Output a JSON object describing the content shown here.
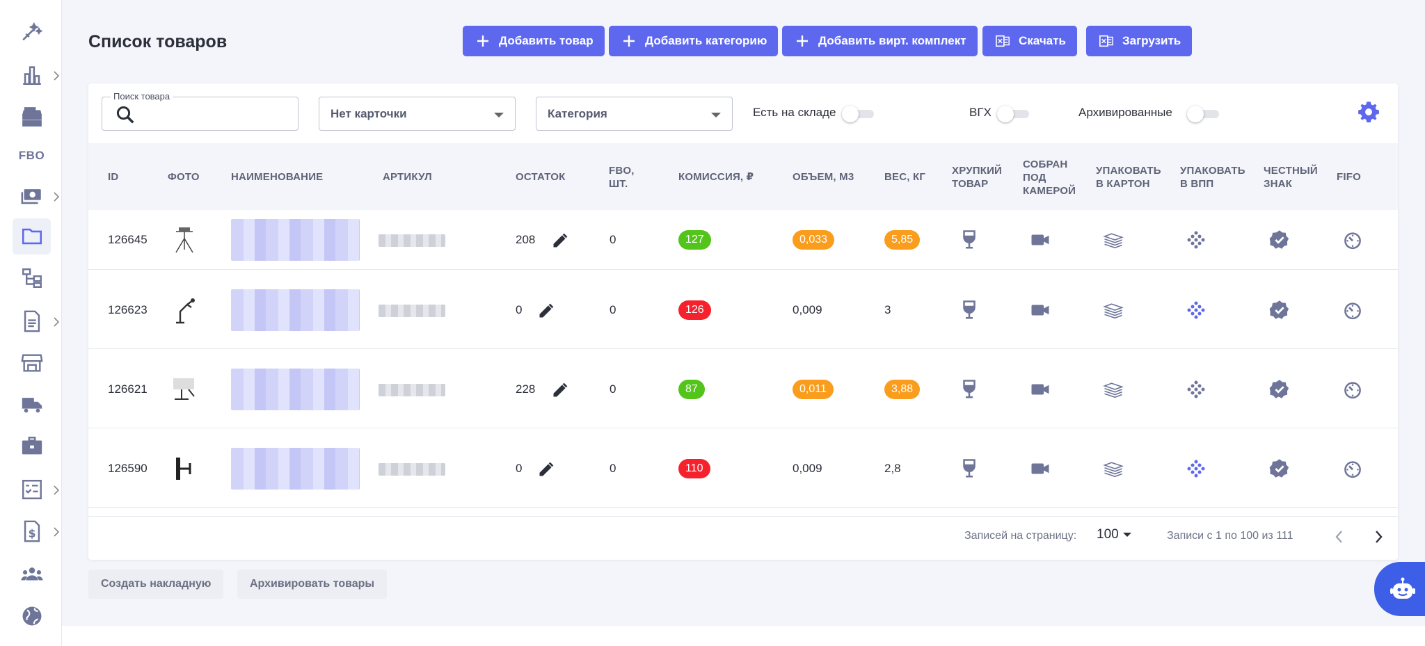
{
  "page": {
    "title": "Список товаров"
  },
  "sidebar": {
    "items": [
      {
        "icon": "sparkle-icon"
      },
      {
        "icon": "bar-chart-icon",
        "has_submenu": true
      },
      {
        "icon": "cash-register-icon"
      },
      {
        "text": "FBO"
      },
      {
        "icon": "money-icon",
        "has_submenu": true
      },
      {
        "icon": "folder-icon",
        "active": true
      },
      {
        "icon": "hierarchy-icon"
      },
      {
        "icon": "document-icon",
        "has_submenu": true
      },
      {
        "icon": "store-icon"
      },
      {
        "icon": "truck-icon"
      },
      {
        "icon": "briefcase-icon"
      },
      {
        "icon": "checklist-icon",
        "has_submenu": true
      },
      {
        "icon": "invoice-icon",
        "has_submenu": true
      },
      {
        "icon": "team-icon"
      },
      {
        "icon": "globe-icon"
      }
    ]
  },
  "toolbar": {
    "add_product": "Добавить товар",
    "add_category": "Добавить категорию",
    "add_virtual_kit": "Добавить вирт. комплект",
    "download": "Скачать",
    "upload": "Загрузить"
  },
  "filters": {
    "search_label": "Поиск товара",
    "search_value": "",
    "card_select": "Нет карточки",
    "category_select": "Категория",
    "in_stock_label": "Есть на складе",
    "vgh_label": "ВГХ",
    "archived_label": "Архивированные",
    "in_stock_on": false,
    "vgh_on": false,
    "archived_on": false
  },
  "table": {
    "columns": {
      "id": "ID",
      "photo": "ФОТО",
      "name": "НАИМЕНОВАНИЕ",
      "sku": "АРТИКУЛ",
      "stock": "ОСТАТОК",
      "fbo_1": "FBO,",
      "fbo_2": "ШТ.",
      "commission": "КОМИССИЯ, ₽",
      "volume": "ОБЪЕМ, М3",
      "weight": "ВЕС, КГ",
      "fragile_1": "ХРУПКИЙ",
      "fragile_2": "ТОВАР",
      "camera_1": "СОБРАН",
      "camera_2": "ПОД",
      "camera_3": "КАМЕРОЙ",
      "carton_1": "УПАКОВАТЬ",
      "carton_2": "В КАРТОН",
      "bubble_1": "УПАКОВАТЬ",
      "bubble_2": "В ВПП",
      "honest_1": "ЧЕСТНЫЙ",
      "honest_2": "ЗНАК",
      "fifo": "FIFO"
    },
    "rows": [
      {
        "id": "126645",
        "stock": "208",
        "fbo": "0",
        "commission": "127",
        "commission_color": "#52c41a",
        "volume": "0,033",
        "volume_badge": true,
        "weight": "5,85",
        "weight_badge": true,
        "bubble_active": false
      },
      {
        "id": "126623",
        "stock": "0",
        "fbo": "0",
        "commission": "126",
        "commission_color": "#f5222d",
        "volume": "0,009",
        "volume_badge": false,
        "weight": "3",
        "weight_badge": false,
        "bubble_active": true
      },
      {
        "id": "126621",
        "stock": "228",
        "fbo": "0",
        "commission": "87",
        "commission_color": "#52c41a",
        "volume": "0,011",
        "volume_badge": true,
        "weight": "3,88",
        "weight_badge": true,
        "bubble_active": false
      },
      {
        "id": "126590",
        "stock": "0",
        "fbo": "0",
        "commission": "110",
        "commission_color": "#f5222d",
        "volume": "0,009",
        "volume_badge": false,
        "weight": "2,8",
        "weight_badge": false,
        "bubble_active": true
      }
    ]
  },
  "pagination": {
    "per_page_label": "Записей на страницу:",
    "per_page_value": "100",
    "range_text": "Записи с 1 по 100 из 111"
  },
  "bottom": {
    "create_invoice": "Создать накладную",
    "archive_products": "Архивировать товары"
  },
  "colors": {
    "accent": "#5d68ee",
    "orange_badge": "#fa9d1c",
    "icon_gray": "#6e7598"
  }
}
